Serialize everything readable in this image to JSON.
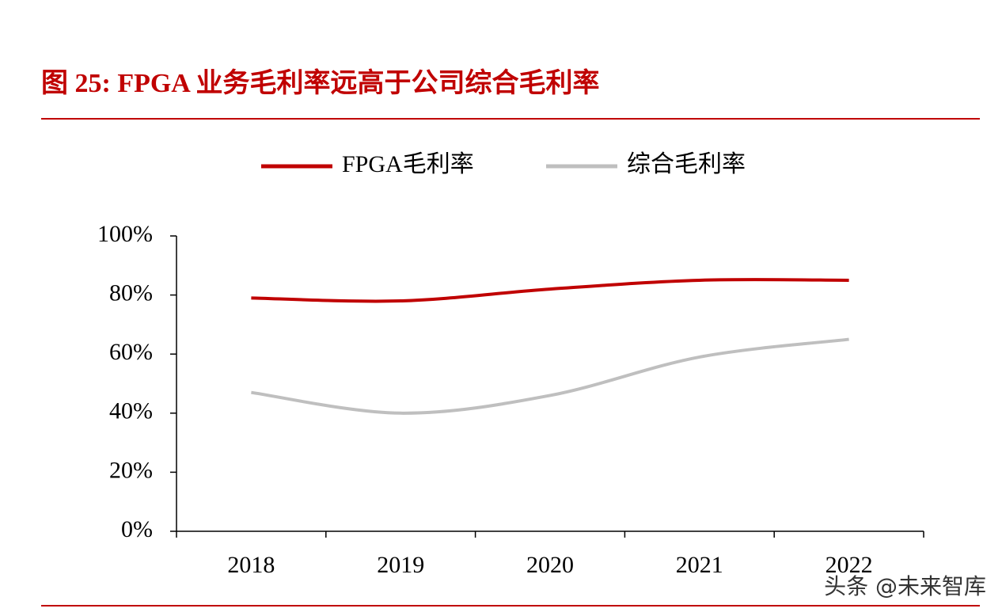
{
  "chart_data": {
    "type": "line",
    "title": "图 25:  FPGA 业务毛利率远高于公司综合毛利率",
    "categories": [
      "2018",
      "2019",
      "2020",
      "2021",
      "2022"
    ],
    "series": [
      {
        "name": "FPGA毛利率",
        "color": "#c00000",
        "values": [
          79,
          78,
          82,
          85,
          85
        ]
      },
      {
        "name": "综合毛利率",
        "color": "#bfbfbf",
        "values": [
          47,
          40,
          46,
          59,
          65
        ]
      }
    ],
    "ylim": [
      0,
      100
    ],
    "yticks": [
      {
        "value": 0,
        "label": "0%"
      },
      {
        "value": 20,
        "label": "20%"
      },
      {
        "value": 40,
        "label": "40%"
      },
      {
        "value": 60,
        "label": "60%"
      },
      {
        "value": 80,
        "label": "80%"
      },
      {
        "value": 100,
        "label": "100%"
      }
    ],
    "legend": "top",
    "watermark": "头条 @未来智库"
  }
}
